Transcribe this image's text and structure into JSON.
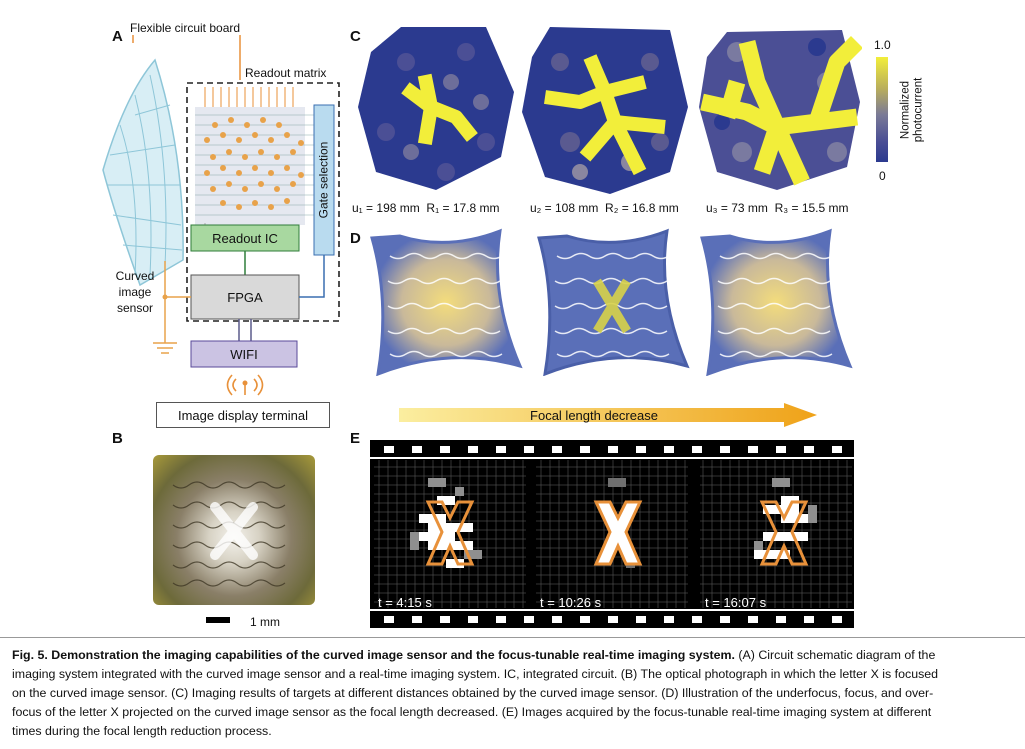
{
  "panels": {
    "A": {
      "label": "A",
      "flex_board": "Flexible circuit board",
      "readout_matrix": "Readout matrix",
      "gate_selection": "Gate selection",
      "readout_ic": "Readout IC",
      "fpga": "FPGA",
      "wifi": "WIFI",
      "sensor": [
        "Curved",
        "image",
        "sensor"
      ],
      "terminal": "Image display terminal"
    },
    "B": {
      "label": "B",
      "scale": "1 mm"
    },
    "C": {
      "label": "C",
      "colorbar_max": "1.0",
      "colorbar_min": "0",
      "colorbar_title_1": "Normalized",
      "colorbar_title_2": "photocurrent",
      "maps": [
        {
          "u": "u₁ = 198 mm",
          "r": "R₁ = 17.8 mm"
        },
        {
          "u": "u₂ = 108 mm",
          "r": "R₂ = 16.8 mm"
        },
        {
          "u": "u₃ = 73 mm",
          "r": "R₃ = 15.5 mm"
        }
      ]
    },
    "D": {
      "label": "D",
      "arrow_text": "Focal length decrease"
    },
    "E": {
      "label": "E",
      "times": [
        "t = 4:15 s",
        "t = 10:26 s",
        "t = 16:07 s"
      ]
    }
  },
  "caption": {
    "title": "Fig. 5. Demonstration the imaging capabilities of the curved image sensor and the focus-tunable real-time imaging system.",
    "l1": " (A) Circuit schematic diagram of the",
    "l2": "imaging system integrated with the curved image sensor and a real-time imaging system. IC, integrated circuit. (B) The optical photograph in which the letter X is focused",
    "l3": "on the curved image sensor. (C) Imaging results of targets at different distances obtained by the curved image sensor. (D) Illustration of the underfocus, focus, and over-",
    "l4": "focus of the letter X projected on the curved image sensor as the focal length decreased. (E) Images acquired by the focus-tunable real-time imaging system at different",
    "l5": "times during the focal length reduction process."
  },
  "colors": {
    "hex_dark": "#2b3a8f",
    "hex_mid": "#6d6e9a",
    "hex_yellow": "#f2ee3a",
    "orange": "#e8913a",
    "blue_wire": "#3a6fb0",
    "green_box": "#a8d8a0"
  }
}
